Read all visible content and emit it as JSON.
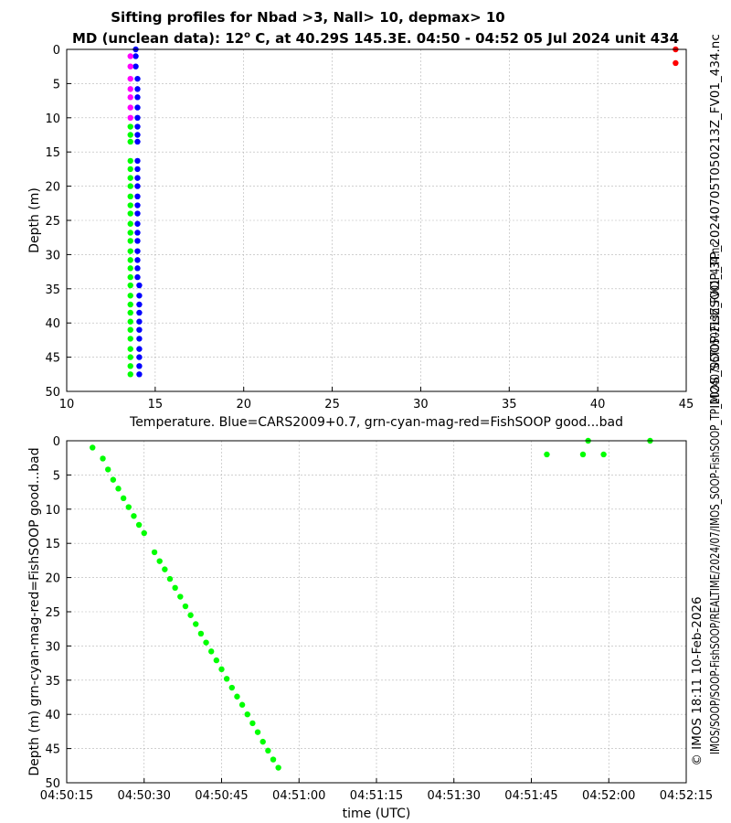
{
  "title": {
    "line1": "Sifting profiles for Nbad >3, Nall> 10, depmax> 10",
    "line2_pre": "MD (unclean data): 12",
    "line2_sup": "o",
    "line2_post": " C, at 40.29S 145.3E. 04:50 - 04:52 05 Jul 2024 unit 434"
  },
  "side_text": {
    "filename": "IMOS_SOOP-FishSOOP_TP_20240705T050213Z_FV01_434.nc",
    "credit_line1": "© IMOS 18:11 10-Feb-2026",
    "credit_line2": "IMOS/SOOP/SOOP-FishSOOP/REALTIME/2024/07/IMOS_SOOP-FishSOOP_TP_20240705T050213Z_FV01_434.nc"
  },
  "colors": {
    "blue": "#0000ff",
    "green": "#00ff00",
    "magenta": "#ff00ff",
    "red": "#ff0000",
    "grid": "#b4b4b4"
  },
  "chart_data": [
    {
      "type": "scatter",
      "xlabel": "Temperature. Blue=CARS2009+0.7, grn-cyan-mag-red=FishSOOP good...bad",
      "ylabel": "Depth (m)",
      "xlim": [
        10,
        45
      ],
      "ylim": [
        0,
        50
      ],
      "y_reversed": true,
      "grid": true,
      "xticks": [
        10,
        15,
        20,
        25,
        30,
        35,
        40,
        45
      ],
      "yticks": [
        0,
        5,
        10,
        15,
        20,
        25,
        30,
        35,
        40,
        45,
        50
      ],
      "series": [
        {
          "color": "blue",
          "points": [
            [
              13.9,
              0
            ],
            [
              13.9,
              1
            ],
            [
              13.9,
              2.5
            ],
            [
              14.0,
              4.3
            ],
            [
              14.0,
              5.8
            ],
            [
              14.0,
              7.0
            ],
            [
              14.0,
              8.5
            ],
            [
              14.0,
              10.0
            ],
            [
              14.0,
              11.3
            ],
            [
              14.0,
              12.5
            ],
            [
              14.0,
              13.5
            ],
            [
              14.0,
              16.3
            ],
            [
              14.0,
              17.5
            ],
            [
              14.0,
              18.8
            ],
            [
              14.0,
              20.0
            ],
            [
              14.0,
              21.5
            ],
            [
              14.0,
              22.8
            ],
            [
              14.0,
              24.0
            ],
            [
              14.0,
              25.5
            ],
            [
              14.0,
              26.8
            ],
            [
              14.0,
              28.0
            ],
            [
              14.0,
              29.5
            ],
            [
              14.0,
              30.8
            ],
            [
              14.0,
              32.0
            ],
            [
              14.0,
              33.3
            ],
            [
              14.1,
              34.5
            ],
            [
              14.1,
              36.0
            ],
            [
              14.1,
              37.3
            ],
            [
              14.1,
              38.5
            ],
            [
              14.1,
              39.8
            ],
            [
              14.1,
              41.0
            ],
            [
              14.1,
              42.3
            ],
            [
              14.1,
              43.8
            ],
            [
              14.1,
              45.0
            ],
            [
              14.1,
              46.3
            ],
            [
              14.1,
              47.5
            ]
          ]
        },
        {
          "color": "magenta",
          "points": [
            [
              13.6,
              1
            ],
            [
              13.6,
              2.5
            ],
            [
              13.6,
              4.3
            ],
            [
              13.6,
              5.8
            ],
            [
              13.6,
              7.0
            ],
            [
              13.6,
              8.5
            ],
            [
              13.6,
              10.0
            ]
          ]
        },
        {
          "color": "green",
          "points": [
            [
              13.6,
              11.3
            ],
            [
              13.6,
              12.5
            ],
            [
              13.6,
              13.5
            ],
            [
              13.6,
              16.3
            ],
            [
              13.6,
              17.5
            ],
            [
              13.6,
              18.8
            ],
            [
              13.6,
              20.0
            ],
            [
              13.6,
              21.5
            ],
            [
              13.6,
              22.8
            ],
            [
              13.6,
              24.0
            ],
            [
              13.6,
              25.5
            ],
            [
              13.6,
              26.8
            ],
            [
              13.6,
              28.0
            ],
            [
              13.6,
              29.5
            ],
            [
              13.6,
              30.8
            ],
            [
              13.6,
              32.0
            ],
            [
              13.6,
              33.3
            ],
            [
              13.6,
              34.5
            ],
            [
              13.6,
              36.0
            ],
            [
              13.6,
              37.3
            ],
            [
              13.6,
              38.5
            ],
            [
              13.6,
              39.8
            ],
            [
              13.6,
              41.0
            ],
            [
              13.6,
              42.3
            ],
            [
              13.6,
              43.8
            ],
            [
              13.6,
              45.0
            ],
            [
              13.6,
              46.3
            ],
            [
              13.6,
              47.5
            ]
          ]
        },
        {
          "color": "red",
          "points": [
            [
              44.4,
              0
            ],
            [
              44.4,
              2
            ]
          ]
        }
      ]
    },
    {
      "type": "scatter",
      "xlabel": "time (UTC)",
      "ylabel": "Depth (m) grn-cyan-mag-red=FishSOOP good...bad",
      "xlim": [
        "04:50:15",
        "04:52:15"
      ],
      "ylim": [
        0,
        50
      ],
      "y_reversed": true,
      "grid": true,
      "xticks": [
        "04:50:15",
        "04:50:30",
        "04:50:45",
        "04:51:00",
        "04:51:15",
        "04:51:30",
        "04:51:45",
        "04:52:00",
        "04:52:15"
      ],
      "yticks": [
        0,
        5,
        10,
        15,
        20,
        25,
        30,
        35,
        40,
        45,
        50
      ],
      "series": [
        {
          "color": "green",
          "points": [
            [
              "04:50:20",
              1.0
            ],
            [
              "04:50:22",
              2.6
            ],
            [
              "04:50:23",
              4.2
            ],
            [
              "04:50:24",
              5.7
            ],
            [
              "04:50:25",
              7.0
            ],
            [
              "04:50:26",
              8.4
            ],
            [
              "04:50:27",
              9.7
            ],
            [
              "04:50:28",
              11.0
            ],
            [
              "04:50:29",
              12.3
            ],
            [
              "04:50:30",
              13.5
            ],
            [
              "04:50:32",
              16.3
            ],
            [
              "04:50:33",
              17.6
            ],
            [
              "04:50:34",
              18.8
            ],
            [
              "04:50:35",
              20.2
            ],
            [
              "04:50:36",
              21.5
            ],
            [
              "04:50:37",
              22.8
            ],
            [
              "04:50:38",
              24.2
            ],
            [
              "04:50:39",
              25.5
            ],
            [
              "04:50:40",
              26.8
            ],
            [
              "04:50:41",
              28.2
            ],
            [
              "04:50:42",
              29.5
            ],
            [
              "04:50:43",
              30.8
            ],
            [
              "04:50:44",
              32.1
            ],
            [
              "04:50:45",
              33.4
            ],
            [
              "04:50:46",
              34.8
            ],
            [
              "04:50:47",
              36.1
            ],
            [
              "04:50:48",
              37.4
            ],
            [
              "04:50:49",
              38.6
            ],
            [
              "04:50:50",
              40.0
            ],
            [
              "04:50:51",
              41.3
            ],
            [
              "04:50:52",
              42.6
            ],
            [
              "04:50:53",
              44.0
            ],
            [
              "04:50:54",
              45.3
            ],
            [
              "04:50:55",
              46.6
            ],
            [
              "04:50:56",
              47.8
            ],
            [
              "04:51:48",
              2.0
            ],
            [
              "04:51:55",
              2.0
            ],
            [
              "04:51:56",
              0.0
            ],
            [
              "04:51:59",
              2.0
            ],
            [
              "04:52:08",
              0.0
            ]
          ]
        }
      ]
    }
  ]
}
